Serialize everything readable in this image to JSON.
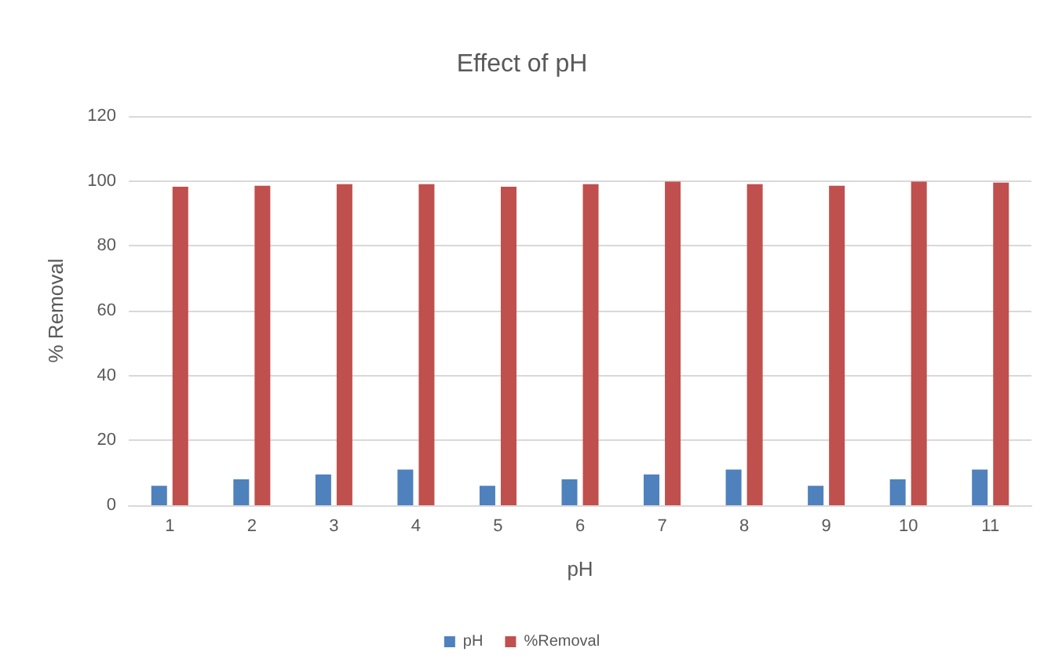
{
  "chart_data": {
    "type": "bar",
    "title": "Effect of pH",
    "xlabel": "pH",
    "ylabel": "% Removal",
    "categories": [
      "1",
      "2",
      "3",
      "4",
      "5",
      "6",
      "7",
      "8",
      "9",
      "10",
      "11"
    ],
    "series": [
      {
        "name": "pH",
        "color": "#4f81bd",
        "values": [
          6,
          8,
          9.5,
          11,
          6,
          8,
          9.5,
          11,
          6,
          8,
          11
        ]
      },
      {
        "name": "%Removal",
        "color": "#c0504d",
        "values": [
          98.2,
          98.5,
          99,
          99,
          98.2,
          99,
          99.8,
          99,
          98.5,
          99.8,
          99.5
        ]
      }
    ],
    "ylim": [
      0,
      120
    ],
    "yticks": [
      0,
      20,
      40,
      60,
      80,
      100,
      120
    ],
    "grid": "y",
    "legend": "bottom"
  }
}
